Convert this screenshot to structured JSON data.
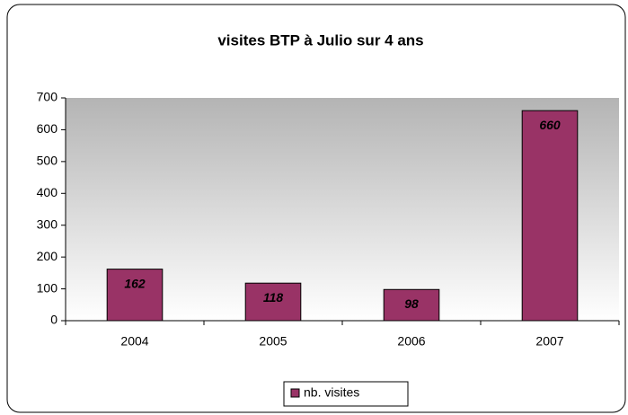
{
  "chart_data": {
    "type": "bar",
    "title": "visites BTP à Julio sur 4 ans",
    "categories": [
      "2004",
      "2005",
      "2006",
      "2007"
    ],
    "series": [
      {
        "name": "nb. visites",
        "color": "#993366",
        "values": [
          162,
          118,
          98,
          660
        ]
      }
    ],
    "ylim": [
      0,
      700
    ],
    "yticks": [
      0,
      100,
      200,
      300,
      400,
      500,
      600,
      700
    ],
    "grid": false,
    "legend": "bottom"
  }
}
